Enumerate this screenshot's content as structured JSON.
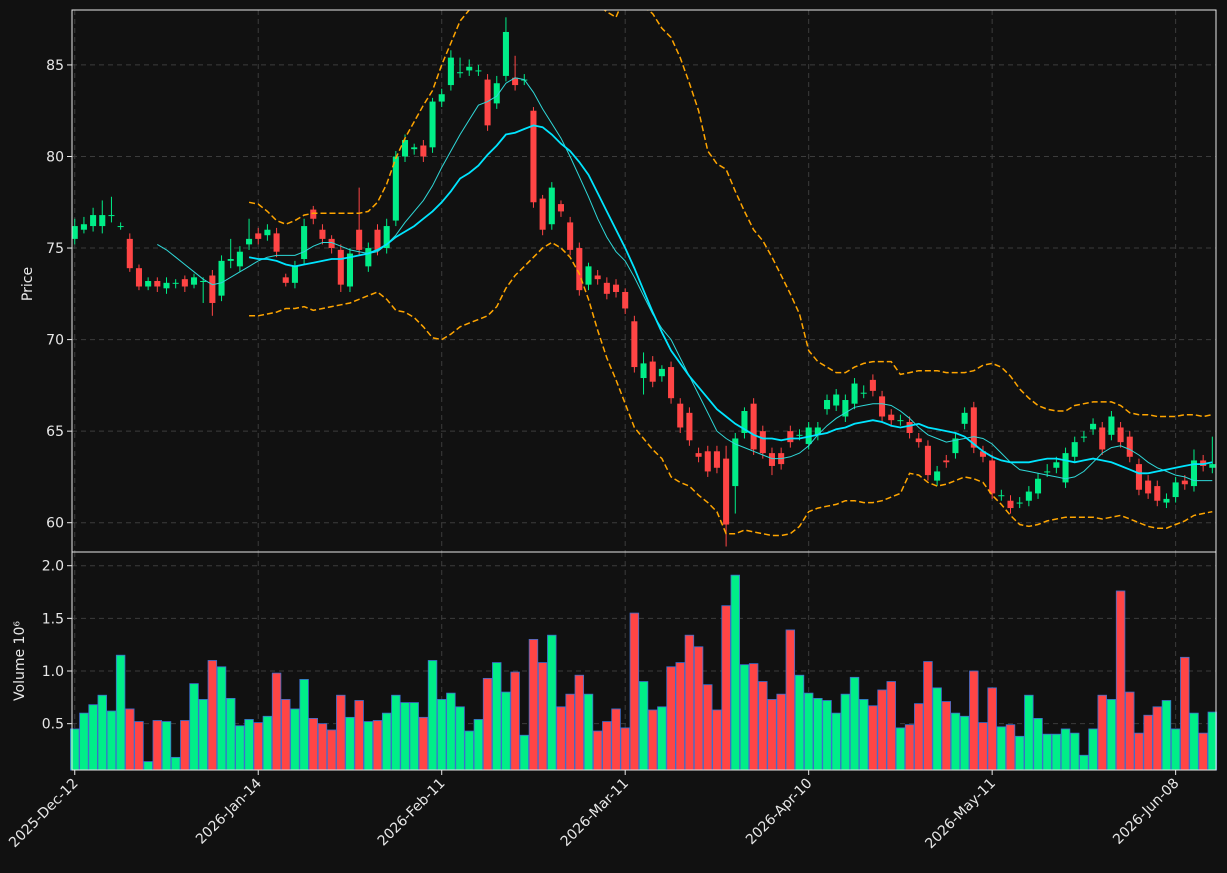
{
  "chart_data": {
    "type": "candlestick",
    "categories": [
      "2025-Dec-12",
      null,
      null,
      null,
      null,
      null,
      null,
      null,
      null,
      null,
      null,
      null,
      null,
      null,
      null,
      null,
      null,
      null,
      null,
      null,
      "2026-Jan-14",
      null,
      null,
      null,
      null,
      null,
      null,
      null,
      null,
      null,
      null,
      null,
      null,
      null,
      null,
      null,
      null,
      null,
      null,
      null,
      "2026-Feb-11",
      null,
      null,
      null,
      null,
      null,
      null,
      null,
      null,
      null,
      null,
      null,
      null,
      null,
      null,
      null,
      null,
      null,
      null,
      null,
      "2026-Mar-11",
      null,
      null,
      null,
      null,
      null,
      null,
      null,
      null,
      null,
      null,
      null,
      null,
      null,
      null,
      null,
      null,
      null,
      null,
      null,
      "2026-Apr-10",
      null,
      null,
      null,
      null,
      null,
      null,
      null,
      null,
      null,
      null,
      null,
      null,
      null,
      null,
      null,
      null,
      null,
      null,
      null,
      "2026-May-11",
      null,
      null,
      null,
      null,
      null,
      null,
      null,
      null,
      null,
      null,
      null,
      null,
      null,
      null,
      null,
      null,
      null,
      null,
      null,
      "2026-Jun-08",
      null,
      null,
      null,
      null
    ],
    "xlim": [
      -0.3,
      124.4
    ],
    "open": [
      75.5,
      76.0,
      76.2,
      76.2,
      76.8,
      76.2,
      75.5,
      73.9,
      72.9,
      73.2,
      72.8,
      73.1,
      73.3,
      73.0,
      73.2,
      73.5,
      72.4,
      74.3,
      74.0,
      75.2,
      75.8,
      75.7,
      75.8,
      73.4,
      73.1,
      74.4,
      77.1,
      76.0,
      75.5,
      74.9,
      72.9,
      76.0,
      74.0,
      76.0,
      75.0,
      76.5,
      80.0,
      80.4,
      80.6,
      80.5,
      83.0,
      83.9,
      84.6,
      84.7,
      84.7,
      84.2,
      82.9,
      84.4,
      84.3,
      84.2,
      82.5,
      77.7,
      76.3,
      77.4,
      76.4,
      75.0,
      73.0,
      73.5,
      73.1,
      73.0,
      72.6,
      71.0,
      67.9,
      68.8,
      68.0,
      68.5,
      66.5,
      66.0,
      63.8,
      63.9,
      63.9,
      63.5,
      62.0,
      64.9,
      66.5,
      65.0,
      63.8,
      63.8,
      65.0,
      64.8,
      64.3,
      64.8,
      66.2,
      66.4,
      65.8,
      66.5,
      67.1,
      67.8,
      66.9,
      65.9,
      65.6,
      65.5,
      64.6,
      64.2,
      62.3,
      63.4,
      63.8,
      65.4,
      66.3,
      63.9,
      63.4,
      61.5,
      61.2,
      61.1,
      61.2,
      61.6,
      62.8,
      63.0,
      62.2,
      63.6,
      64.7,
      65.1,
      65.2,
      64.8,
      65.2,
      64.7,
      63.2,
      62.3,
      62.0,
      61.1,
      61.4,
      62.3,
      62.0,
      63.4,
      63.0
    ],
    "high": [
      76.6,
      76.7,
      77.2,
      77.6,
      77.8,
      76.4,
      75.8,
      74.1,
      73.4,
      73.4,
      73.4,
      73.3,
      73.5,
      73.6,
      73.4,
      73.8,
      74.6,
      75.5,
      75.1,
      76.6,
      76.1,
      76.3,
      76.1,
      73.6,
      74.3,
      76.6,
      77.3,
      76.3,
      75.7,
      75.2,
      75.0,
      78.3,
      75.3,
      76.3,
      76.6,
      80.3,
      81.2,
      80.7,
      80.9,
      83.2,
      83.7,
      85.8,
      85.4,
      85.3,
      85.0,
      84.5,
      84.4,
      87.6,
      85.5,
      84.5,
      82.7,
      77.9,
      78.6,
      77.6,
      76.7,
      75.3,
      74.2,
      73.8,
      73.4,
      73.3,
      72.8,
      71.3,
      69.3,
      69.1,
      68.6,
      68.8,
      66.8,
      66.3,
      64.1,
      64.2,
      64.2,
      64.2,
      64.9,
      66.3,
      66.8,
      65.3,
      64.1,
      64.1,
      65.3,
      65.1,
      65.5,
      65.5,
      67.0,
      67.3,
      67.0,
      67.9,
      67.5,
      68.1,
      67.2,
      66.2,
      65.9,
      65.8,
      64.9,
      64.5,
      63.1,
      63.7,
      64.9,
      66.3,
      66.6,
      64.2,
      63.7,
      61.8,
      61.5,
      61.4,
      62.0,
      62.7,
      63.2,
      63.6,
      64.1,
      64.7,
      65.0,
      65.7,
      65.5,
      66.1,
      65.5,
      65.0,
      63.5,
      62.6,
      62.3,
      61.6,
      62.5,
      62.6,
      64.0,
      63.7,
      64.7
    ],
    "low": [
      75.2,
      75.8,
      75.9,
      75.8,
      76.4,
      76.0,
      73.7,
      72.7,
      72.7,
      72.6,
      72.5,
      72.8,
      72.6,
      72.8,
      72.0,
      71.3,
      72.1,
      73.9,
      73.7,
      74.9,
      75.2,
      75.4,
      74.5,
      72.9,
      72.8,
      74.1,
      76.3,
      75.2,
      74.7,
      72.6,
      72.6,
      74.6,
      73.7,
      74.6,
      74.7,
      76.2,
      79.7,
      80.1,
      79.7,
      80.2,
      82.7,
      83.6,
      84.3,
      84.4,
      84.4,
      81.4,
      82.6,
      84.1,
      83.6,
      83.9,
      77.2,
      75.7,
      76.0,
      76.7,
      74.6,
      72.4,
      72.7,
      73.0,
      72.2,
      72.3,
      71.4,
      68.2,
      67.0,
      67.4,
      67.7,
      66.5,
      64.9,
      64.2,
      63.3,
      62.5,
      62.7,
      58.7,
      60.5,
      64.6,
      63.7,
      63.5,
      62.6,
      62.9,
      64.1,
      64.5,
      64.0,
      64.5,
      65.9,
      66.1,
      65.5,
      66.2,
      66.8,
      66.9,
      65.5,
      65.3,
      65.3,
      64.6,
      64.1,
      62.3,
      62.0,
      63.0,
      63.5,
      65.1,
      63.8,
      63.3,
      61.3,
      61.2,
      60.5,
      60.8,
      60.9,
      61.3,
      62.5,
      62.7,
      61.9,
      63.3,
      64.4,
      64.8,
      63.7,
      64.5,
      64.1,
      63.3,
      61.5,
      61.3,
      60.9,
      60.8,
      61.1,
      61.8,
      61.7,
      62.8,
      62.7
    ],
    "close": [
      76.2,
      76.3,
      76.8,
      76.8,
      76.8,
      76.2,
      73.9,
      72.9,
      73.2,
      72.9,
      73.1,
      73.1,
      72.9,
      73.4,
      73.2,
      72.0,
      74.3,
      74.4,
      74.8,
      75.5,
      75.5,
      76.0,
      74.8,
      73.1,
      74.0,
      76.2,
      76.6,
      75.5,
      75.0,
      73.0,
      74.7,
      74.9,
      75.0,
      74.9,
      76.2,
      80.0,
      80.9,
      80.5,
      80.0,
      83.0,
      83.4,
      85.4,
      84.6,
      84.9,
      84.7,
      81.7,
      84.0,
      86.8,
      83.9,
      84.2,
      77.5,
      76.0,
      78.3,
      77.0,
      74.9,
      72.7,
      74.0,
      73.3,
      72.5,
      72.6,
      71.7,
      68.5,
      68.7,
      67.7,
      68.4,
      66.8,
      65.2,
      64.5,
      63.6,
      62.8,
      63.0,
      59.9,
      64.6,
      66.1,
      64.0,
      63.8,
      63.1,
      63.2,
      64.4,
      64.8,
      65.2,
      65.2,
      66.7,
      67.0,
      66.7,
      67.6,
      67.1,
      67.2,
      65.8,
      65.6,
      65.6,
      64.9,
      64.4,
      62.6,
      62.8,
      63.3,
      64.6,
      66.0,
      64.1,
      63.6,
      61.6,
      61.5,
      60.8,
      61.1,
      61.7,
      62.4,
      62.8,
      63.3,
      63.8,
      64.4,
      64.7,
      65.4,
      64.0,
      65.8,
      64.4,
      63.6,
      61.8,
      61.6,
      61.2,
      61.3,
      62.2,
      62.1,
      63.4,
      63.1,
      63.2
    ],
    "up_color": "#00ee88",
    "down_color": "#ff4545",
    "ylabel": "Price",
    "ylim": [
      58.4,
      88.0
    ],
    "yticks": [
      60,
      65,
      70,
      75,
      80,
      85
    ],
    "grid": true,
    "overlays": [
      {
        "color": "#2fd8d8",
        "width": 1,
        "style": "solid",
        "values": [
          null,
          null,
          null,
          null,
          null,
          null,
          null,
          null,
          null,
          75.2,
          74.9,
          74.5,
          74.1,
          73.7,
          73.3,
          73.0,
          73.1,
          73.4,
          73.7,
          74.0,
          74.3,
          74.5,
          74.6,
          74.6,
          74.6,
          74.8,
          75.1,
          75.3,
          75.3,
          75.1,
          74.9,
          74.8,
          74.7,
          74.8,
          75.2,
          75.7,
          76.4,
          77.0,
          77.6,
          78.4,
          79.4,
          80.3,
          81.2,
          82.0,
          82.8,
          83.0,
          83.3,
          84.0,
          84.3,
          84.2,
          83.5,
          82.6,
          81.8,
          81.0,
          80.0,
          78.9,
          77.8,
          76.6,
          75.6,
          74.8,
          74.3,
          73.4,
          72.4,
          71.4,
          70.6,
          70.0,
          69.0,
          68.0,
          67.0,
          66.0,
          65.0,
          64.6,
          64.3,
          64.1,
          63.9,
          63.7,
          63.5,
          63.5,
          63.6,
          63.8,
          64.2,
          64.8,
          65.3,
          65.7,
          66.0,
          66.3,
          66.4,
          66.5,
          66.5,
          66.4,
          66.1,
          65.7,
          65.2,
          64.8,
          64.6,
          64.4,
          64.5,
          64.6,
          64.7,
          64.6,
          64.3,
          63.8,
          63.3,
          62.9,
          62.8,
          62.7,
          62.6,
          62.5,
          62.4,
          62.5,
          62.8,
          63.3,
          63.8,
          64.1,
          64.2,
          64.0,
          63.7,
          63.3,
          63.0,
          62.8,
          62.6,
          62.5,
          62.3,
          62.3,
          62.3
        ]
      },
      {
        "color": "#00e5ff",
        "width": 1.8,
        "style": "solid",
        "values": [
          null,
          null,
          null,
          null,
          null,
          null,
          null,
          null,
          null,
          null,
          null,
          null,
          null,
          null,
          null,
          null,
          null,
          null,
          null,
          74.5,
          74.4,
          74.4,
          74.3,
          74.1,
          74.0,
          74.1,
          74.2,
          74.3,
          74.4,
          74.4,
          74.5,
          74.6,
          74.7,
          74.9,
          75.2,
          75.6,
          75.9,
          76.2,
          76.6,
          77.0,
          77.5,
          78.1,
          78.8,
          79.1,
          79.5,
          80.1,
          80.6,
          81.2,
          81.3,
          81.5,
          81.7,
          81.6,
          81.2,
          80.7,
          80.3,
          79.7,
          79.0,
          78.0,
          77.0,
          76.0,
          75.0,
          73.9,
          72.7,
          71.5,
          70.4,
          69.4,
          68.7,
          68.0,
          67.4,
          66.8,
          66.2,
          65.8,
          65.4,
          65.1,
          64.8,
          64.6,
          64.6,
          64.5,
          64.6,
          64.6,
          64.7,
          64.8,
          64.9,
          65.1,
          65.2,
          65.4,
          65.5,
          65.6,
          65.5,
          65.3,
          65.2,
          65.3,
          65.4,
          65.2,
          65.1,
          65.0,
          64.9,
          64.7,
          64.3,
          63.9,
          63.6,
          63.4,
          63.3,
          63.3,
          63.3,
          63.4,
          63.5,
          63.5,
          63.4,
          63.3,
          63.4,
          63.5,
          63.4,
          63.3,
          63.1,
          62.9,
          62.7,
          62.7,
          62.8,
          62.9,
          63.0,
          63.1,
          63.2,
          63.2,
          63.3
        ]
      },
      {
        "color": "#ffa500",
        "width": 1.5,
        "style": "dashed",
        "values": [
          null,
          null,
          null,
          null,
          null,
          null,
          null,
          null,
          null,
          null,
          null,
          null,
          null,
          null,
          null,
          null,
          null,
          null,
          null,
          77.5,
          77.4,
          77.0,
          76.5,
          76.3,
          76.5,
          76.8,
          76.9,
          76.9,
          76.9,
          76.9,
          76.9,
          76.9,
          77.0,
          77.5,
          78.5,
          79.9,
          81.0,
          81.9,
          82.8,
          83.6,
          85.0,
          86.2,
          87.4,
          88.0,
          88.4,
          88.8,
          89.2,
          89.6,
          90.0,
          90.2,
          90.2,
          90.1,
          90.0,
          89.8,
          89.5,
          89.1,
          88.7,
          88.3,
          87.9,
          87.6,
          88.8,
          88.5,
          88.2,
          87.8,
          87.0,
          86.5,
          85.4,
          84.0,
          82.5,
          80.3,
          79.6,
          79.3,
          78.1,
          77.0,
          76.0,
          75.4,
          74.5,
          73.5,
          72.5,
          71.4,
          69.4,
          68.8,
          68.5,
          68.2,
          68.2,
          68.5,
          68.7,
          68.8,
          68.8,
          68.8,
          68.1,
          68.2,
          68.3,
          68.3,
          68.3,
          68.2,
          68.2,
          68.2,
          68.3,
          68.6,
          68.7,
          68.5,
          68.0,
          67.3,
          66.8,
          66.4,
          66.2,
          66.1,
          66.1,
          66.4,
          66.5,
          66.6,
          66.6,
          66.6,
          66.4,
          66.0,
          65.9,
          65.9,
          65.8,
          65.8,
          65.8,
          65.9,
          65.9,
          65.8,
          65.9
        ]
      },
      {
        "color": "#ffa500",
        "width": 1.5,
        "style": "dashed",
        "values": [
          null,
          null,
          null,
          null,
          null,
          null,
          null,
          null,
          null,
          null,
          null,
          null,
          null,
          null,
          null,
          null,
          null,
          null,
          null,
          71.3,
          71.3,
          71.4,
          71.5,
          71.7,
          71.7,
          71.8,
          71.6,
          71.7,
          71.8,
          71.9,
          72.0,
          72.2,
          72.4,
          72.6,
          72.2,
          71.6,
          71.5,
          71.2,
          70.7,
          70.1,
          70.0,
          70.3,
          70.7,
          70.9,
          71.1,
          71.3,
          71.8,
          72.8,
          73.5,
          74.0,
          74.5,
          75.0,
          75.3,
          75.0,
          74.5,
          73.6,
          72.2,
          70.5,
          69.0,
          67.8,
          66.5,
          65.2,
          64.6,
          64.0,
          63.5,
          62.5,
          62.2,
          62.0,
          61.5,
          61.1,
          60.6,
          59.4,
          59.4,
          59.6,
          59.5,
          59.4,
          59.3,
          59.3,
          59.4,
          59.8,
          60.6,
          60.8,
          60.9,
          61.0,
          61.2,
          61.2,
          61.1,
          61.1,
          61.2,
          61.4,
          61.6,
          62.7,
          62.6,
          62.2,
          62.0,
          62.1,
          62.3,
          62.5,
          62.4,
          62.2,
          61.5,
          61.0,
          60.4,
          59.9,
          59.8,
          59.9,
          60.1,
          60.2,
          60.3,
          60.3,
          60.3,
          60.3,
          60.2,
          60.3,
          60.4,
          60.2,
          60.0,
          59.8,
          59.7,
          59.7,
          59.9,
          60.1,
          60.4,
          60.5,
          60.6
        ]
      }
    ],
    "volume": {
      "ylabel": "Volume  10⁶",
      "edge_color": "#3d6fd0",
      "ylim": [
        0.06,
        2.13
      ],
      "yticks": [
        {
          "value": 0.5,
          "label": "0.5"
        },
        {
          "value": 1.0,
          "label": "1.0"
        },
        {
          "value": 1.5,
          "label": "1.5"
        },
        {
          "value": 2.0,
          "label": "2.0"
        }
      ],
      "values": [
        0.45,
        0.6,
        0.68,
        0.77,
        0.62,
        1.15,
        0.64,
        0.52,
        0.14,
        0.53,
        0.52,
        0.18,
        0.53,
        0.88,
        0.73,
        1.1,
        1.04,
        0.74,
        0.48,
        0.54,
        0.51,
        0.57,
        0.98,
        0.73,
        0.64,
        0.92,
        0.55,
        0.5,
        0.44,
        0.77,
        0.56,
        0.72,
        0.52,
        0.53,
        0.6,
        0.77,
        0.7,
        0.7,
        0.56,
        1.1,
        0.73,
        0.79,
        0.66,
        0.43,
        0.54,
        0.93,
        1.08,
        0.8,
        0.99,
        0.39,
        1.3,
        1.08,
        1.34,
        0.66,
        0.78,
        0.96,
        0.78,
        0.43,
        0.52,
        0.64,
        0.46,
        1.55,
        0.9,
        0.63,
        0.66,
        1.04,
        1.08,
        1.34,
        1.23,
        0.87,
        0.63,
        1.62,
        1.91,
        1.06,
        1.07,
        0.9,
        0.73,
        0.78,
        1.39,
        0.96,
        0.79,
        0.74,
        0.72,
        0.6,
        0.78,
        0.94,
        0.73,
        0.67,
        0.82,
        0.9,
        0.46,
        0.49,
        0.69,
        1.09,
        0.84,
        0.71,
        0.6,
        0.57,
        1.0,
        0.51,
        0.84,
        0.47,
        0.49,
        0.38,
        0.77,
        0.55,
        0.4,
        0.4,
        0.45,
        0.41,
        0.2,
        0.45,
        0.77,
        0.73,
        1.76,
        0.8,
        0.41,
        0.58,
        0.66,
        0.72,
        0.45,
        1.13,
        0.6,
        0.41,
        0.61
      ]
    }
  }
}
